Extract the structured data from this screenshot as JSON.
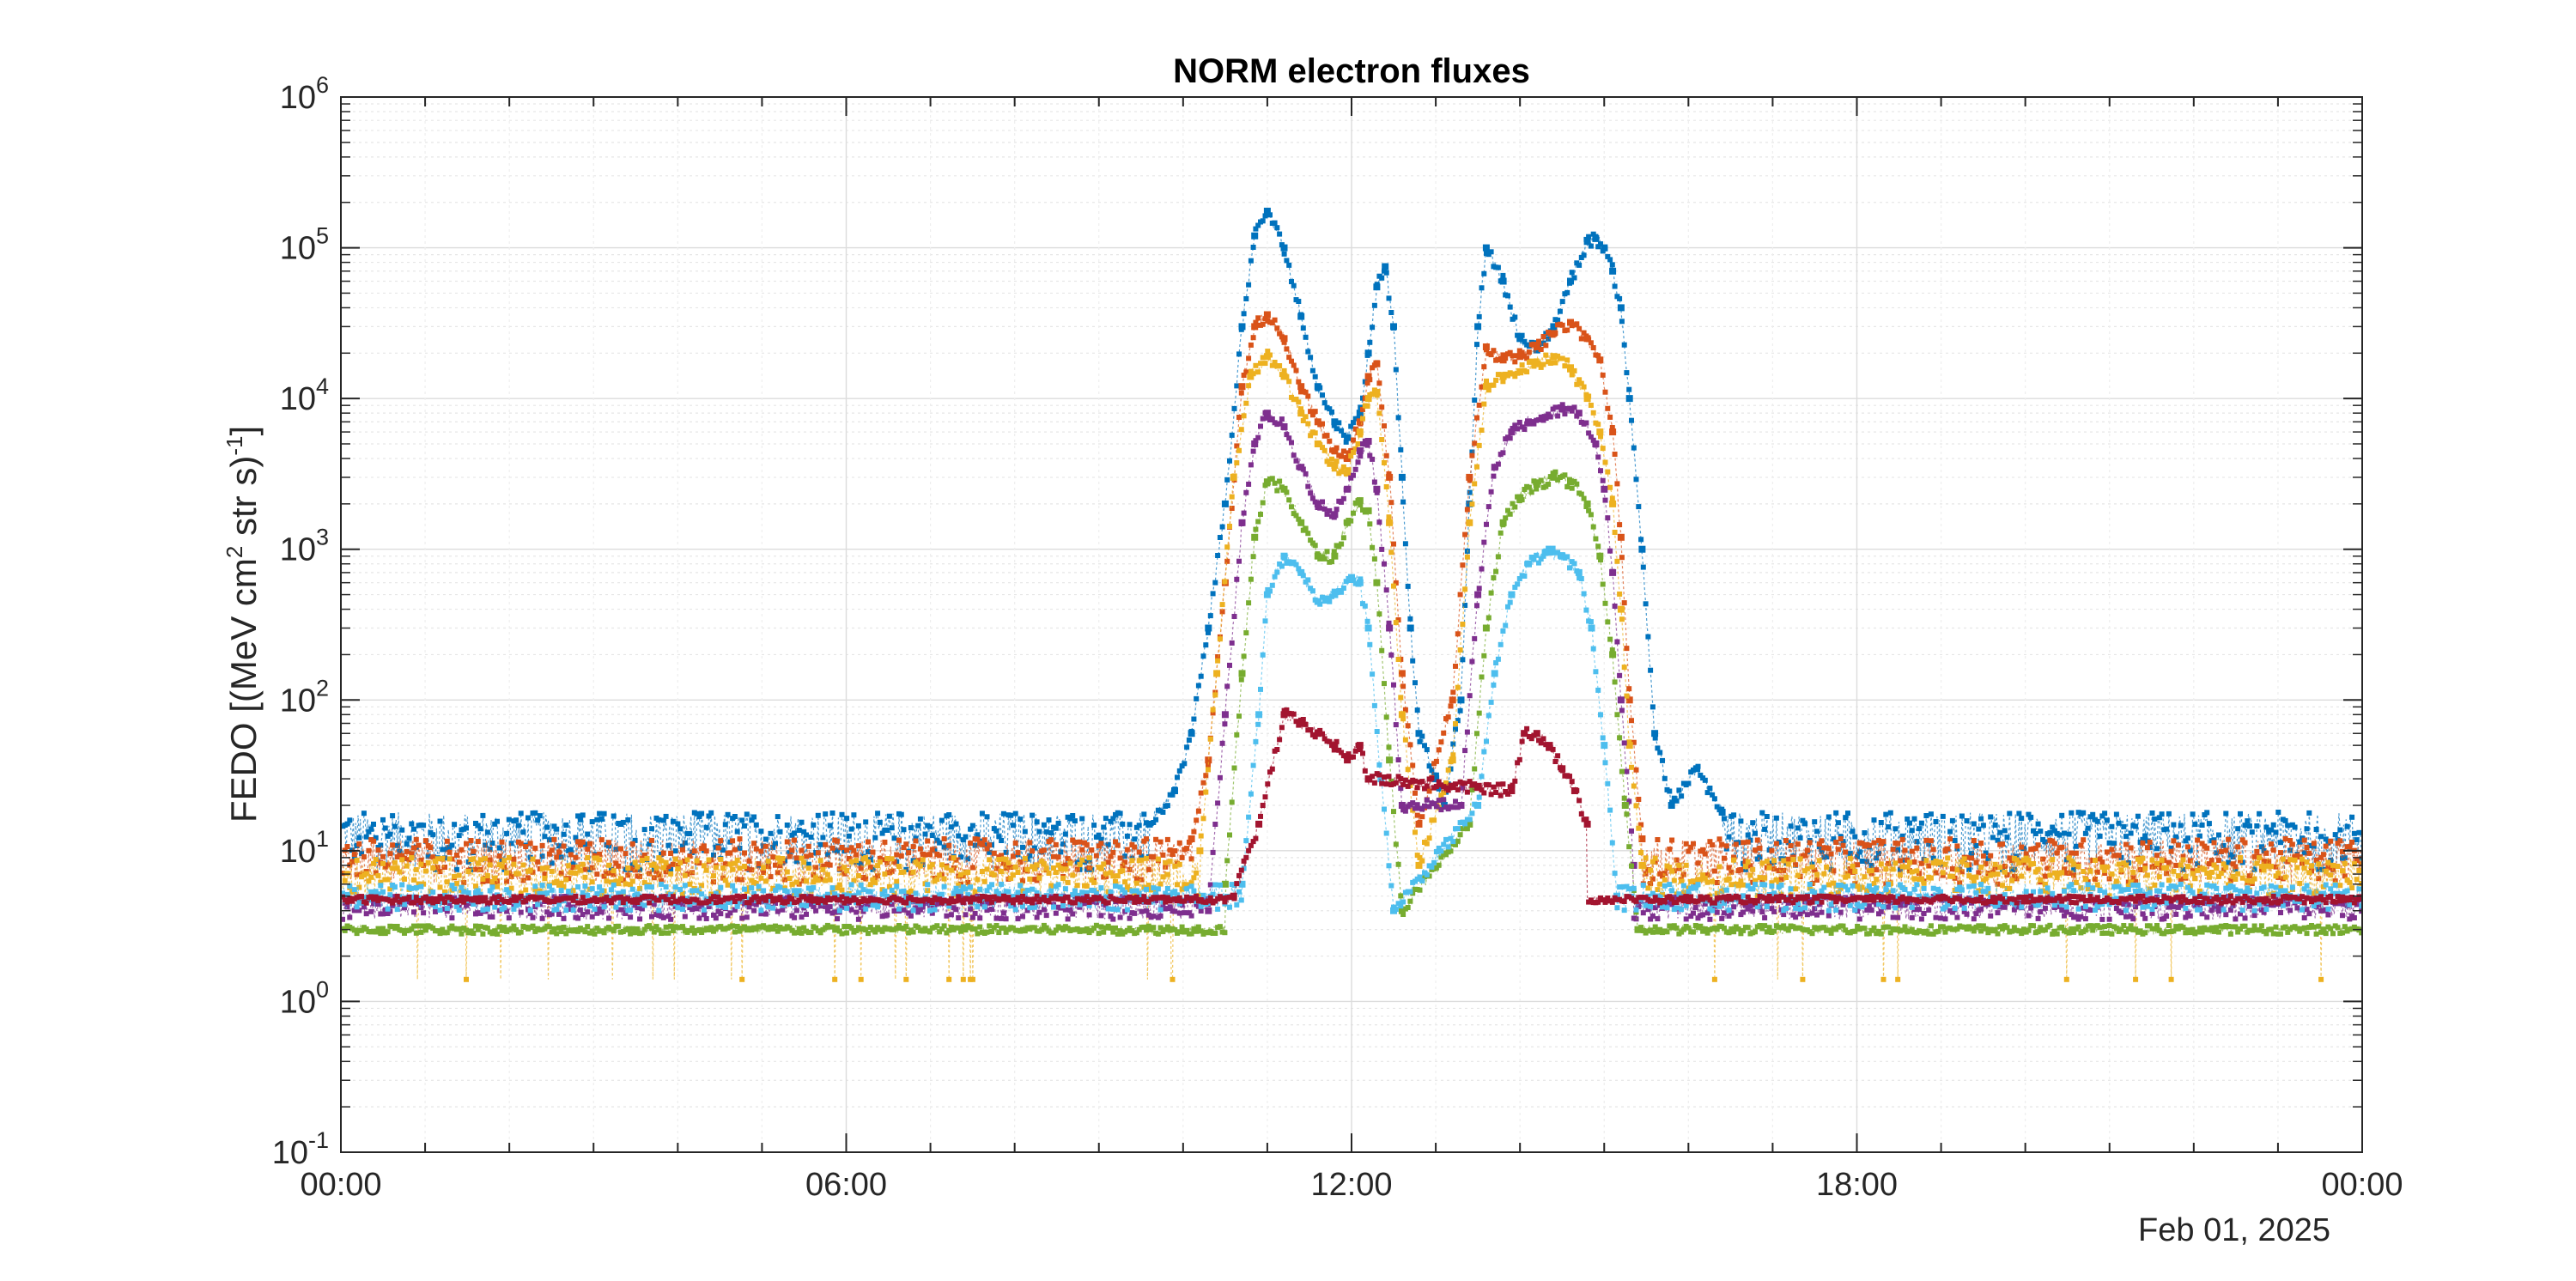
{
  "chart_data": {
    "type": "scatter",
    "title": "NORM electron fluxes",
    "ylabel": "FEDO [(MeV cm2 str s)-1]",
    "ylabel_parts": {
      "main": "FEDO [(MeV cm",
      "sup1": "2",
      "mid": " str s)",
      "sup2": "-1",
      "end": "]"
    },
    "yscale": "log",
    "ylim": [
      0.1,
      1000000
    ],
    "yticks": [
      {
        "base": "10",
        "exp": "-1"
      },
      {
        "base": "10",
        "exp": "0"
      },
      {
        "base": "10",
        "exp": "1"
      },
      {
        "base": "10",
        "exp": "2"
      },
      {
        "base": "10",
        "exp": "3"
      },
      {
        "base": "10",
        "exp": "4"
      },
      {
        "base": "10",
        "exp": "5"
      },
      {
        "base": "10",
        "exp": "6"
      }
    ],
    "xlim_hours": [
      0,
      24
    ],
    "xticks": [
      "00:00",
      "06:00",
      "12:00",
      "18:00",
      "00:00"
    ],
    "date_label": "Feb 01, 2025",
    "grid": true,
    "minor_grid": true,
    "marker": "square",
    "line_style": "dotted",
    "series": [
      {
        "color": "#0072BD",
        "background": [
          8,
          18
        ],
        "x_hours": [
          9.6,
          9.9,
          10.1,
          10.3,
          10.5,
          10.7,
          10.85,
          11.0,
          11.2,
          11.4,
          11.6,
          11.8,
          11.95,
          12.1,
          12.2,
          12.3,
          12.4,
          12.5,
          12.6,
          12.7,
          12.8,
          13.0,
          13.1,
          13.3,
          13.4,
          13.5,
          13.6,
          13.8,
          14.0,
          14.2,
          14.4,
          14.6,
          14.8,
          14.9,
          15.0,
          15.1,
          15.2,
          15.3,
          15.45,
          15.6,
          15.8,
          16.1,
          16.4
        ],
        "y": [
          15,
          25,
          60,
          300,
          2000,
          30000,
          120000,
          175000,
          100000,
          35000,
          12000,
          7000,
          5500,
          8000,
          20000,
          55000,
          75000,
          30000,
          3000,
          300,
          60,
          30,
          20,
          100,
          2000,
          30000,
          100000,
          60000,
          25000,
          21000,
          30000,
          60000,
          110000,
          115000,
          100000,
          70000,
          40000,
          10000,
          1000,
          60,
          20,
          35,
          18
        ]
      },
      {
        "color": "#D95319",
        "background": [
          6,
          12
        ],
        "x_hours": [
          10.1,
          10.3,
          10.5,
          10.7,
          10.85,
          11.0,
          11.2,
          11.4,
          11.6,
          11.8,
          11.95,
          12.1,
          12.2,
          12.3,
          12.45,
          12.6,
          12.8,
          13.2,
          13.4,
          13.6,
          13.8,
          14.0,
          14.2,
          14.4,
          14.6,
          14.8,
          14.95,
          15.1,
          15.2,
          15.3,
          15.45
        ],
        "y": [
          12,
          40,
          600,
          12000,
          30000,
          36000,
          25000,
          12000,
          7000,
          4500,
          4000,
          7000,
          14000,
          17000,
          3000,
          150,
          15,
          100,
          3000,
          22000,
          18000,
          19000,
          22000,
          27000,
          32000,
          25000,
          18000,
          6000,
          1200,
          100,
          12
        ]
      },
      {
        "color": "#EDB120",
        "background": [
          5,
          9
        ],
        "x_hours": [
          10.2,
          10.4,
          10.6,
          10.8,
          11.0,
          11.2,
          11.4,
          11.6,
          11.8,
          11.95,
          12.1,
          12.2,
          12.3,
          12.45,
          12.6,
          12.8,
          13.2,
          13.4,
          13.6,
          13.8,
          14.0,
          14.2,
          14.4,
          14.6,
          14.8,
          14.95,
          15.1,
          15.2,
          15.3,
          15.45
        ],
        "y": [
          10,
          150,
          3000,
          14000,
          19000,
          14000,
          8000,
          5000,
          3600,
          3200,
          6000,
          10000,
          11000,
          1500,
          80,
          8,
          40,
          1500,
          12000,
          14000,
          15000,
          17000,
          19000,
          16000,
          10000,
          6000,
          2000,
          400,
          50,
          8
        ]
      },
      {
        "color": "#7E2F8E",
        "background": [
          3.5,
          5
        ],
        "x_hours": [
          10.3,
          10.5,
          10.7,
          10.85,
          11.0,
          11.2,
          11.4,
          11.6,
          11.8,
          11.95,
          12.1,
          12.2,
          12.3,
          12.45,
          12.6,
          13.3,
          13.5,
          13.7,
          13.9,
          14.1,
          14.3,
          14.5,
          14.7,
          14.9,
          15.0,
          15.1,
          15.2,
          15.35
        ],
        "y": [
          4,
          80,
          1500,
          5000,
          8000,
          6500,
          3500,
          2000,
          1700,
          2500,
          4500,
          5200,
          2500,
          300,
          20,
          20,
          500,
          3500,
          6000,
          7000,
          7500,
          8500,
          8000,
          5000,
          2500,
          700,
          100,
          8
        ]
      },
      {
        "color": "#77AC30",
        "background": [
          2.8,
          3.2
        ],
        "x_hours": [
          10.5,
          10.7,
          10.85,
          11.0,
          11.2,
          11.4,
          11.6,
          11.8,
          11.95,
          12.1,
          12.2,
          12.3,
          12.45,
          12.6,
          13.4,
          13.6,
          13.8,
          14.0,
          14.2,
          14.4,
          14.6,
          14.8,
          14.95,
          15.1,
          15.25,
          15.4
        ],
        "y": [
          6,
          150,
          1200,
          2800,
          2500,
          1500,
          900,
          900,
          1500,
          2100,
          1800,
          600,
          40,
          4,
          15,
          300,
          1500,
          2200,
          2700,
          3000,
          2800,
          2000,
          900,
          200,
          20,
          3
        ]
      },
      {
        "color": "#4DBEEE",
        "background": [
          4,
          6
        ],
        "x_hours": [
          10.7,
          10.9,
          11.0,
          11.2,
          11.4,
          11.6,
          11.8,
          12.0,
          12.1,
          12.2,
          12.35,
          12.5,
          13.5,
          13.7,
          13.9,
          14.1,
          14.3,
          14.5,
          14.7,
          14.85,
          15.0,
          15.15
        ],
        "y": [
          6,
          80,
          500,
          900,
          700,
          450,
          500,
          650,
          600,
          300,
          30,
          4,
          20,
          150,
          500,
          800,
          950,
          900,
          700,
          300,
          50,
          5
        ]
      },
      {
        "color": "#A2142F",
        "background": [
          4.5,
          5
        ],
        "x_hours": [
          10.6,
          10.9,
          11.2,
          11.4,
          11.6,
          11.8,
          11.95,
          12.1,
          12.2,
          13.9,
          14.05,
          14.2,
          14.35,
          14.5,
          14.65,
          14.8
        ],
        "y": [
          5,
          15,
          80,
          70,
          60,
          50,
          40,
          50,
          30,
          25,
          60,
          60,
          50,
          35,
          25,
          15
        ]
      }
    ]
  }
}
